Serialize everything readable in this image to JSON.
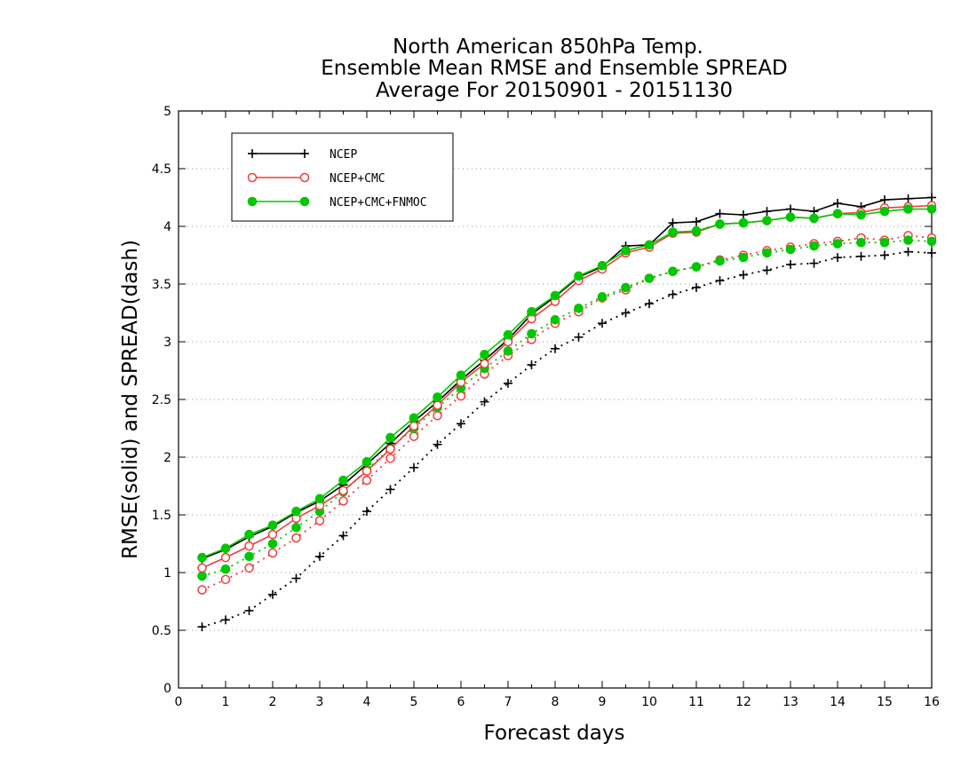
{
  "chart_data": {
    "type": "line",
    "title": [
      "North American 850hPa Temp.",
      "Ensemble Mean RMSE and Ensemble SPREAD",
      "Average For 20150901 - 20151130"
    ],
    "xlabel": "Forecast days",
    "ylabel": "RMSE(solid) and SPREAD(dash)",
    "xlim": [
      0,
      16
    ],
    "ylim": [
      0,
      5
    ],
    "xticks": [
      0,
      1,
      2,
      3,
      4,
      5,
      6,
      7,
      8,
      9,
      10,
      11,
      12,
      13,
      14,
      15,
      16
    ],
    "yticks": [
      0,
      0.5,
      1,
      1.5,
      2,
      2.5,
      3,
      3.5,
      4,
      4.5,
      5
    ],
    "grid": "horizontal dotted",
    "legend_position": "top-left",
    "x": [
      0.5,
      1,
      1.5,
      2,
      2.5,
      3,
      3.5,
      4,
      4.5,
      5,
      5.5,
      6,
      6.5,
      7,
      7.5,
      8,
      8.5,
      9,
      9.5,
      10,
      10.5,
      11,
      11.5,
      12,
      12.5,
      13,
      13.5,
      14,
      14.5,
      15,
      15.5,
      16
    ],
    "series": [
      {
        "name": "NCEP",
        "color": "#000000",
        "marker": "plus",
        "rmse": [
          1.12,
          1.2,
          1.31,
          1.4,
          1.52,
          1.62,
          1.76,
          1.94,
          2.12,
          2.31,
          2.48,
          2.67,
          2.84,
          3.02,
          3.24,
          3.39,
          3.56,
          3.65,
          3.83,
          3.84,
          4.03,
          4.04,
          4.11,
          4.1,
          4.13,
          4.15,
          4.13,
          4.2,
          4.17,
          4.23,
          4.24,
          4.25
        ],
        "spread": [
          0.53,
          0.59,
          0.67,
          0.81,
          0.95,
          1.14,
          1.32,
          1.53,
          1.72,
          1.91,
          2.11,
          2.29,
          2.48,
          2.64,
          2.8,
          2.94,
          3.04,
          3.16,
          3.25,
          3.33,
          3.41,
          3.47,
          3.53,
          3.58,
          3.62,
          3.67,
          3.68,
          3.73,
          3.74,
          3.75,
          3.78,
          3.77
        ]
      },
      {
        "name": "NCEP+CMC",
        "color": "#f03c3c",
        "marker": "open-circle",
        "rmse": [
          1.04,
          1.13,
          1.23,
          1.33,
          1.47,
          1.58,
          1.71,
          1.88,
          2.07,
          2.27,
          2.45,
          2.65,
          2.81,
          3.0,
          3.2,
          3.35,
          3.53,
          3.63,
          3.77,
          3.82,
          3.94,
          3.95,
          4.02,
          4.03,
          4.05,
          4.08,
          4.07,
          4.11,
          4.12,
          4.16,
          4.17,
          4.18
        ],
        "spread": [
          0.85,
          0.94,
          1.04,
          1.17,
          1.3,
          1.45,
          1.62,
          1.8,
          1.99,
          2.18,
          2.36,
          2.53,
          2.72,
          2.88,
          3.02,
          3.16,
          3.26,
          3.38,
          3.45,
          3.55,
          3.61,
          3.65,
          3.71,
          3.75,
          3.79,
          3.82,
          3.85,
          3.87,
          3.9,
          3.88,
          3.92,
          3.9
        ]
      },
      {
        "name": "NCEP+CMC+FNMOC",
        "color": "#00c800",
        "marker": "filled-circle",
        "rmse": [
          1.13,
          1.21,
          1.33,
          1.41,
          1.53,
          1.64,
          1.8,
          1.96,
          2.17,
          2.34,
          2.52,
          2.71,
          2.89,
          3.06,
          3.26,
          3.4,
          3.57,
          3.66,
          3.79,
          3.84,
          3.95,
          3.96,
          4.02,
          4.03,
          4.05,
          4.08,
          4.07,
          4.11,
          4.1,
          4.13,
          4.15,
          4.15
        ],
        "spread": [
          0.97,
          1.03,
          1.14,
          1.25,
          1.39,
          1.53,
          1.7,
          1.89,
          2.08,
          2.25,
          2.43,
          2.6,
          2.77,
          2.92,
          3.07,
          3.19,
          3.29,
          3.39,
          3.47,
          3.55,
          3.61,
          3.65,
          3.7,
          3.73,
          3.77,
          3.8,
          3.83,
          3.85,
          3.86,
          3.86,
          3.88,
          3.87
        ]
      }
    ]
  }
}
